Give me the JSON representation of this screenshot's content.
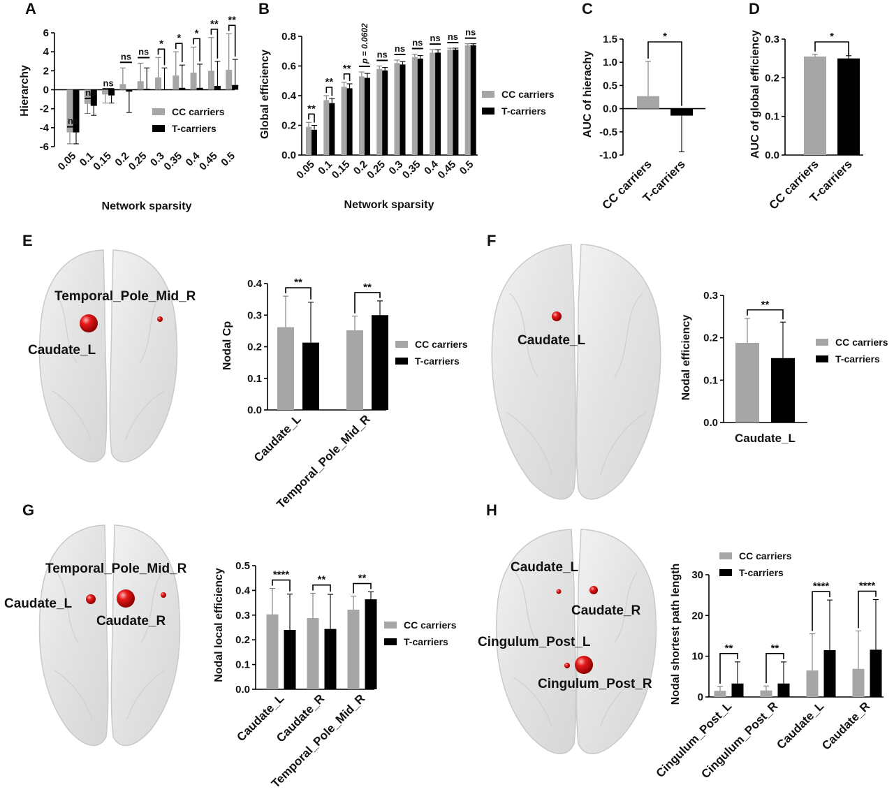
{
  "colors": {
    "cc": "#a6a6a6",
    "t": "#000000",
    "node": "#e01818",
    "brain": "#e4e4e4"
  },
  "legend": {
    "cc": "CC carriers",
    "t": "T-carriers"
  },
  "chart_data": [
    {
      "id": "A",
      "panel_label": "A",
      "type": "bar",
      "xlabel": "Network sparsity",
      "ylabel": "Hierarchy",
      "ylim": [
        -6,
        6
      ],
      "yticks": [
        -6,
        -4,
        -2,
        0,
        2,
        4,
        6
      ],
      "categories": [
        "0.05",
        "0.1",
        "0.15",
        "0.2",
        "0.25",
        "0.3",
        "0.35",
        "0.4",
        "0.45",
        "0.5"
      ],
      "series": [
        {
          "name": "CC carriers",
          "values": [
            -4.5,
            -1.5,
            -0.5,
            0.6,
            0.9,
            1.3,
            1.5,
            1.8,
            2.0,
            2.1
          ],
          "errors": [
            1.2,
            1.0,
            0.9,
            1.7,
            1.9,
            2.1,
            2.5,
            2.7,
            3.5,
            3.8
          ]
        },
        {
          "name": "T-carriers",
          "values": [
            -4.5,
            -1.7,
            -0.6,
            -0.2,
            0.1,
            0.0,
            0.2,
            0.2,
            0.4,
            0.5
          ],
          "errors": [
            1.2,
            1.0,
            0.8,
            2.2,
            2.2,
            2.3,
            2.4,
            2.5,
            2.6,
            2.7
          ]
        }
      ],
      "significance": [
        "ns",
        "ns",
        "ns",
        "ns",
        "ns",
        "*",
        "*",
        "*",
        "**",
        "**"
      ]
    },
    {
      "id": "B",
      "panel_label": "B",
      "type": "bar",
      "xlabel": "Network sparsity",
      "ylabel": "Global efficiency",
      "ylim": [
        0,
        0.8
      ],
      "yticks": [
        0,
        0.2,
        0.4,
        0.6,
        0.8
      ],
      "categories": [
        "0.05",
        "0.1",
        "0.15",
        "0.2",
        "0.25",
        "0.3",
        "0.35",
        "0.4",
        "0.45",
        "0.5"
      ],
      "series": [
        {
          "name": "CC carriers",
          "values": [
            0.19,
            0.37,
            0.46,
            0.53,
            0.58,
            0.62,
            0.66,
            0.69,
            0.71,
            0.74
          ],
          "errors": [
            0.03,
            0.03,
            0.03,
            0.03,
            0.02,
            0.02,
            0.02,
            0.02,
            0.01,
            0.01
          ]
        },
        {
          "name": "T-carriers",
          "values": [
            0.17,
            0.35,
            0.45,
            0.52,
            0.57,
            0.61,
            0.65,
            0.69,
            0.71,
            0.74
          ],
          "errors": [
            0.03,
            0.03,
            0.03,
            0.03,
            0.02,
            0.02,
            0.02,
            0.02,
            0.01,
            0.01
          ]
        }
      ],
      "significance": [
        "**",
        "**",
        "**",
        "p = 0.0602",
        "ns",
        "ns",
        "ns",
        "ns",
        "ns",
        "ns"
      ]
    },
    {
      "id": "C",
      "panel_label": "C",
      "type": "bar",
      "xlabel": "",
      "ylabel": "AUC of hierachy",
      "ylim": [
        -1.0,
        1.5
      ],
      "yticks": [
        -1.0,
        -0.5,
        0.0,
        0.5,
        1.0,
        1.5
      ],
      "categories": [
        "CC carriers",
        "T-carriers"
      ],
      "values": [
        0.27,
        -0.15
      ],
      "errors": [
        0.75,
        0.78
      ],
      "significance": [
        "*"
      ]
    },
    {
      "id": "D",
      "panel_label": "D",
      "type": "bar",
      "xlabel": "",
      "ylabel": "AUC of global efficiency",
      "ylim": [
        0,
        0.3
      ],
      "yticks": [
        0.0,
        0.1,
        0.2,
        0.3
      ],
      "categories": [
        "CC carriers",
        "T-carriers"
      ],
      "values": [
        0.255,
        0.25
      ],
      "errors": [
        0.006,
        0.007
      ],
      "significance": [
        "*"
      ]
    },
    {
      "id": "E",
      "panel_label": "E",
      "type": "bar",
      "xlabel": "",
      "ylabel": "Nodal Cp",
      "ylim": [
        0,
        0.4
      ],
      "yticks": [
        0.0,
        0.1,
        0.2,
        0.3,
        0.4
      ],
      "categories": [
        "Caudate_L",
        "Temporal_Pole_Mid_R"
      ],
      "series": [
        {
          "name": "CC carriers",
          "values": [
            0.262,
            0.252
          ],
          "errors": [
            0.098,
            0.045
          ]
        },
        {
          "name": "T-carriers",
          "values": [
            0.213,
            0.3
          ],
          "errors": [
            0.128,
            0.045
          ]
        }
      ],
      "significance": [
        "**",
        "**"
      ]
    },
    {
      "id": "F",
      "panel_label": "F",
      "type": "bar",
      "xlabel": "",
      "ylabel": "Nodal efficiency",
      "ylim": [
        0,
        0.3
      ],
      "yticks": [
        0.0,
        0.1,
        0.2,
        0.3
      ],
      "categories": [
        "Caudate_L"
      ],
      "series": [
        {
          "name": "CC carriers",
          "values": [
            0.188
          ],
          "errors": [
            0.058
          ]
        },
        {
          "name": "T-carriers",
          "values": [
            0.152
          ],
          "errors": [
            0.085
          ]
        }
      ],
      "significance": [
        "**"
      ]
    },
    {
      "id": "G",
      "panel_label": "G",
      "type": "bar",
      "xlabel": "",
      "ylabel": "Nodal local efficiency",
      "ylim": [
        0,
        0.5
      ],
      "yticks": [
        0.0,
        0.1,
        0.2,
        0.3,
        0.4,
        0.5
      ],
      "categories": [
        "Caudate_L",
        "Caudate_R",
        "Temporal_Pole_Mid_R"
      ],
      "series": [
        {
          "name": "CC carriers",
          "values": [
            0.303,
            0.288,
            0.322
          ],
          "errors": [
            0.105,
            0.1,
            0.055
          ]
        },
        {
          "name": "T-carriers",
          "values": [
            0.24,
            0.244,
            0.364
          ],
          "errors": [
            0.145,
            0.14,
            0.03
          ]
        }
      ],
      "significance": [
        "****",
        "**",
        "**"
      ]
    },
    {
      "id": "H",
      "panel_label": "H",
      "type": "bar",
      "xlabel": "",
      "ylabel": "Nodal shortest path length",
      "ylim": [
        0,
        30
      ],
      "yticks": [
        0,
        10,
        20,
        30
      ],
      "categories": [
        "Cingulum_Post_L",
        "Cingulum_Post_R",
        "Caudate_L",
        "Caudate_R"
      ],
      "series": [
        {
          "name": "CC carriers",
          "values": [
            1.5,
            1.6,
            6.5,
            6.9
          ],
          "errors": [
            1.1,
            1.1,
            9.0,
            9.3
          ]
        },
        {
          "name": "T-carriers",
          "values": [
            3.3,
            3.3,
            11.5,
            11.6
          ],
          "errors": [
            5.3,
            5.3,
            12.3,
            12.3
          ]
        }
      ],
      "significance": [
        "**",
        "**",
        "****",
        "****"
      ]
    }
  ],
  "brains": {
    "E": {
      "labels": [
        "Temporal_Pole_Mid_R",
        "Caudate_L"
      ]
    },
    "F": {
      "labels": [
        "Caudate_L"
      ]
    },
    "G": {
      "labels": [
        "Temporal_Pole_Mid_R",
        "Caudate_L",
        "Caudate_R"
      ]
    },
    "H": {
      "labels": [
        "Caudate_L",
        "Caudate_R",
        "Cingulum_Post_L",
        "Cingulum_Post_R"
      ]
    }
  }
}
